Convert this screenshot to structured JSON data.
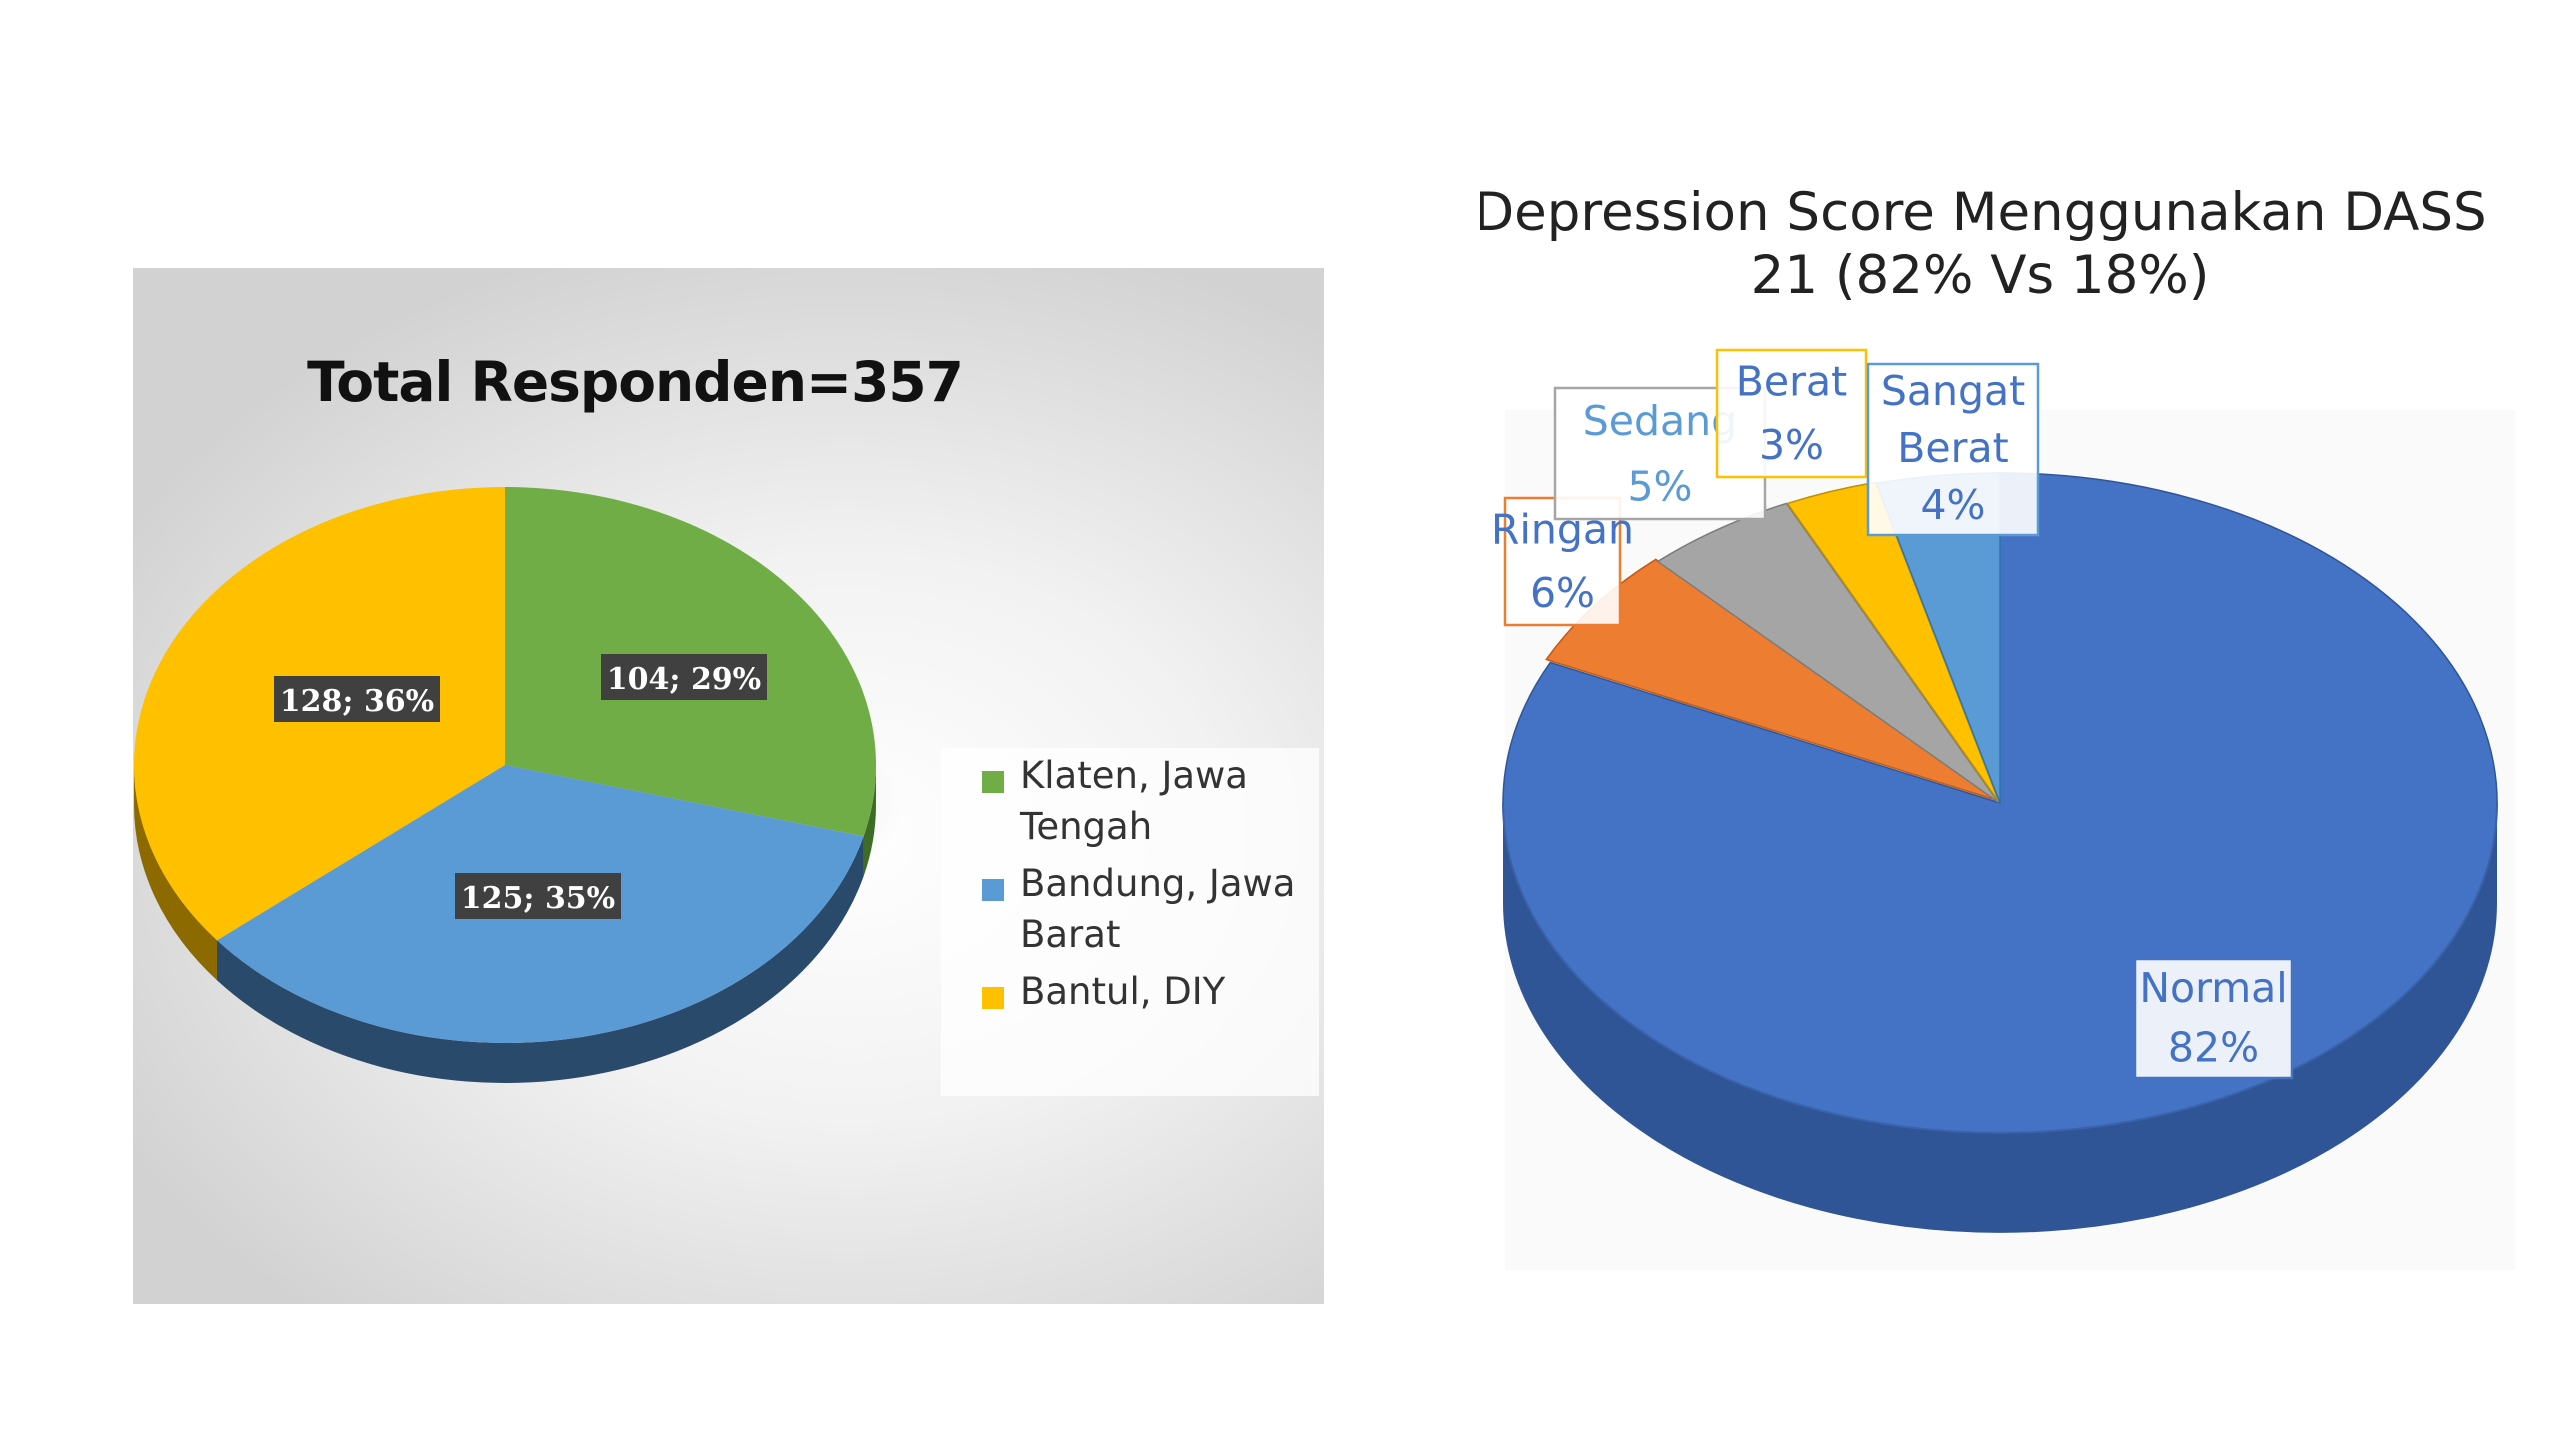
{
  "chart_data": [
    {
      "type": "pie",
      "title": "Total Responden=357",
      "categories": [
        "Klaten, Jawa Tengah",
        "Bandung, Jawa Barat",
        "Bantul, DIY"
      ],
      "values": [
        104,
        125,
        128
      ],
      "percent_labels": [
        "29%",
        "35%",
        "36%"
      ],
      "data_labels": [
        "104; 29%",
        "125; 35%",
        "128; 36%"
      ],
      "legend_lines": [
        [
          "Klaten, Jawa",
          "Tengah"
        ],
        [
          "Bandung, Jawa",
          "Barat"
        ],
        [
          "Bantul, DIY"
        ]
      ],
      "colors": [
        "#70ad47",
        "#5b9bd5",
        "#ffc000"
      ],
      "side_colors": [
        "#3e6b26",
        "#2a4a6c",
        "#8d6a00"
      ],
      "legend_placement": "right",
      "style": "3d"
    },
    {
      "type": "pie",
      "title_lines": [
        "Depression Score Menggunakan DASS",
        "21 (82% Vs 18%)"
      ],
      "categories": [
        "Normal",
        "Ringan",
        "Sedang",
        "Berat",
        "Sangat Berat"
      ],
      "percent_labels": [
        "82%",
        "6%",
        "5%",
        "3%",
        "4%"
      ],
      "values": [
        82,
        6,
        5,
        3,
        4
      ],
      "label_lines": [
        [
          "Normal",
          "82%"
        ],
        [
          "Ringan",
          "6%"
        ],
        [
          "Sedang",
          "5%"
        ],
        [
          "Berat",
          "3%"
        ],
        [
          "Sangat",
          "Berat",
          "4%"
        ]
      ],
      "colors": [
        "#4472c4",
        "#ed7d31",
        "#a5a5a5",
        "#ffc000",
        "#5b9bd5"
      ],
      "side_colors": [
        "#2f5597",
        "#c55a11",
        "#7b7b7b",
        "#bf9000",
        "#2e75b6"
      ],
      "label_border_colors": [
        "#4472c4",
        "#ed7d31",
        "#a5a5a5",
        "#ffc000",
        "#5b9bd5"
      ],
      "label_text_colors": [
        "#4472c4",
        "#4472c4",
        "#5b9bd5",
        "#4472c4",
        "#4472c4"
      ],
      "exploded": [
        "Ringan",
        "Sedang",
        "Berat",
        "Sangat Berat"
      ],
      "legend_placement": "none",
      "style": "3d"
    }
  ]
}
